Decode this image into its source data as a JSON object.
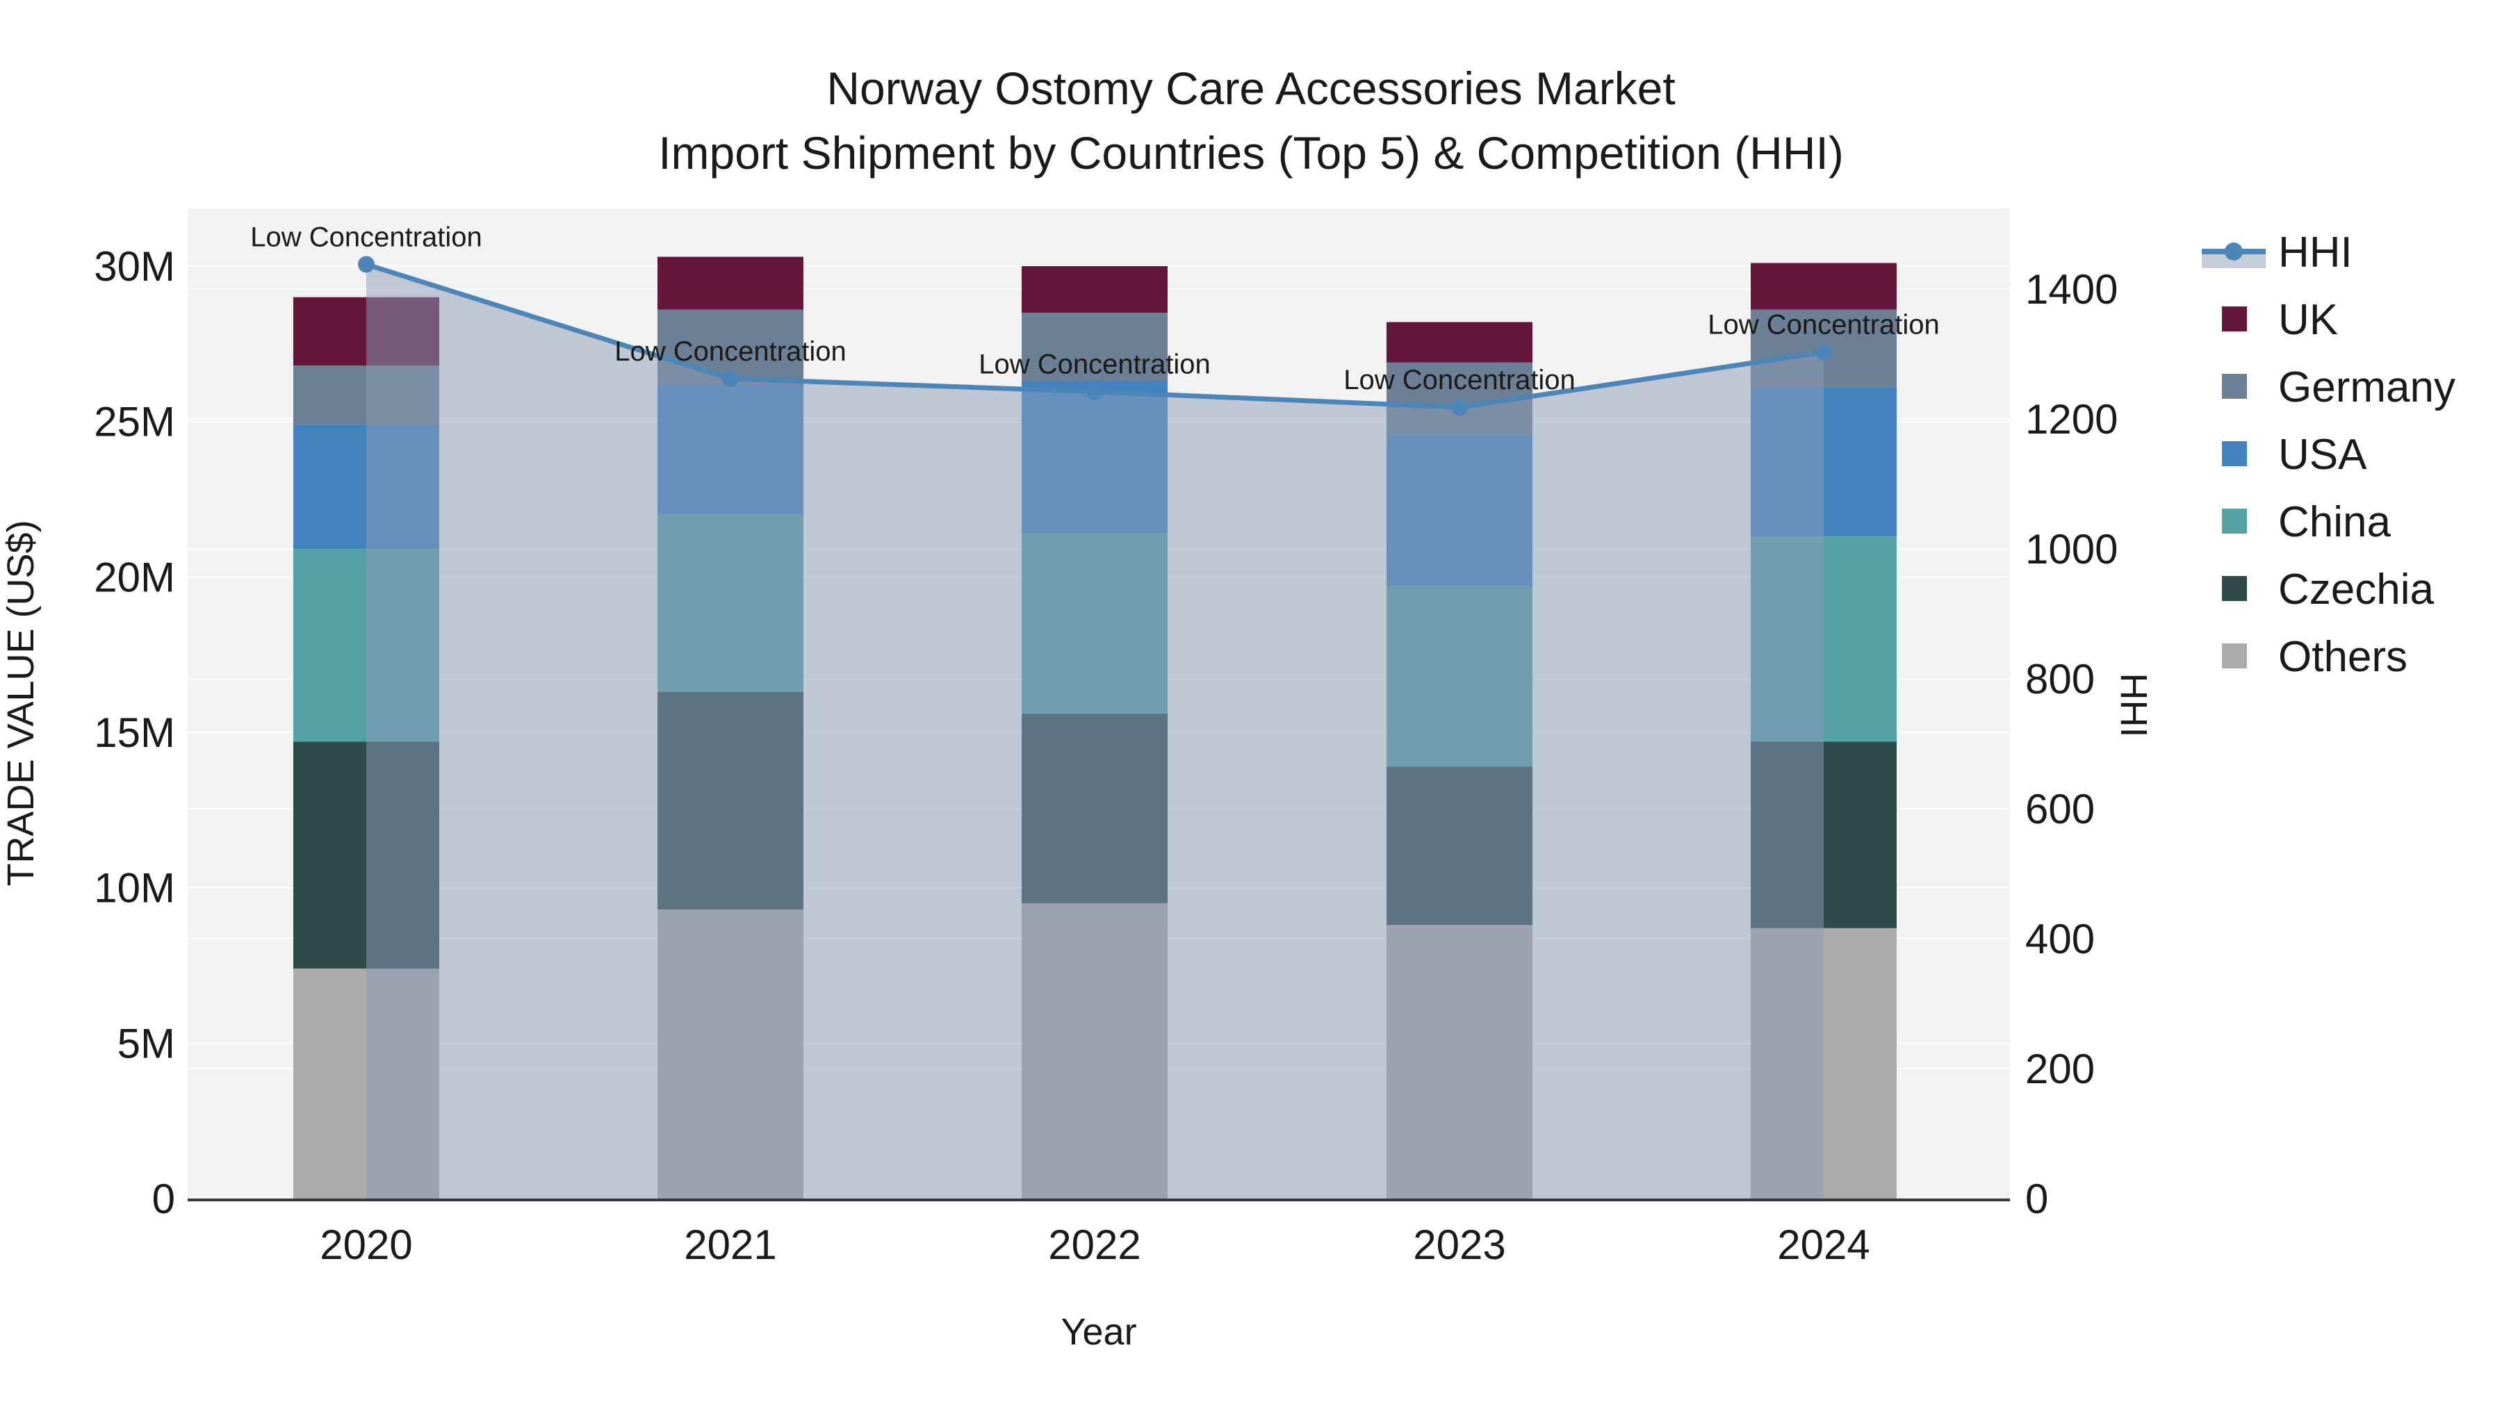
{
  "chart_data": {
    "type": "bar-line-combo",
    "title_line1": "Norway Ostomy Care Accessories Market",
    "title_line2": "Import Shipment by Countries (Top 5) & Competition (HHI)",
    "x_axis": {
      "title": "Year",
      "categories": [
        "2020",
        "2021",
        "2022",
        "2023",
        "2024"
      ]
    },
    "left_axis": {
      "title": "TRADE VALUE (US$)",
      "tick_labels": [
        "0",
        "5M",
        "10M",
        "15M",
        "20M",
        "25M",
        "30M"
      ],
      "tick_values": [
        0,
        5,
        10,
        15,
        20,
        25,
        30
      ],
      "ylim": [
        0,
        31.9
      ],
      "unit": "million US$"
    },
    "right_axis": {
      "title": "HHI",
      "tick_labels": [
        "0",
        "200",
        "400",
        "600",
        "800",
        "1000",
        "1200",
        "1400"
      ],
      "tick_values": [
        0,
        200,
        400,
        600,
        800,
        1000,
        1200,
        1400
      ],
      "ylim": [
        0,
        1524
      ]
    },
    "bar_series_stack_bottom_to_top": [
      {
        "name": "Others",
        "color": "#ABABA9",
        "values_musd": [
          7.4,
          9.3,
          9.5,
          8.8,
          8.7
        ]
      },
      {
        "name": "Czechia",
        "color": "#2C4B4A",
        "values_musd": [
          7.3,
          7.0,
          6.1,
          5.1,
          6.0
        ]
      },
      {
        "name": "China",
        "color": "#55A1A6",
        "values_musd": [
          6.2,
          5.7,
          5.8,
          5.8,
          6.6
        ]
      },
      {
        "name": "USA",
        "color": "#4382BE",
        "values_musd": [
          4.0,
          4.2,
          4.9,
          4.9,
          4.8
        ]
      },
      {
        "name": "Germany",
        "color": "#6C7F94",
        "values_musd": [
          1.9,
          2.4,
          2.2,
          2.3,
          2.5
        ]
      },
      {
        "name": "UK",
        "color": "#64173B",
        "values_musd": [
          2.2,
          1.7,
          1.5,
          1.3,
          1.5
        ]
      }
    ],
    "bar_totals_musd": [
      29.0,
      30.3,
      30.0,
      28.2,
      30.1
    ],
    "line_series": {
      "name": "HHI",
      "color": "#4C86B8",
      "fill_color": "rgba(139,155,183,0.5)",
      "values": [
        1438,
        1262,
        1242,
        1218,
        1303
      ]
    },
    "point_annotations": [
      "Low Concentration",
      "Low Concentration",
      "Low Concentration",
      "Low Concentration",
      "Low Concentration"
    ],
    "legend": {
      "position": "right",
      "items": [
        {
          "name": "HHI",
          "type": "line",
          "color": "#4C86B8"
        },
        {
          "name": "UK",
          "type": "swatch",
          "color": "#64173B"
        },
        {
          "name": "Germany",
          "type": "swatch",
          "color": "#6C7F94"
        },
        {
          "name": "USA",
          "type": "swatch",
          "color": "#4382BE"
        },
        {
          "name": "China",
          "type": "swatch",
          "color": "#55A1A6"
        },
        {
          "name": "Czechia",
          "type": "swatch",
          "color": "#2C4B4A"
        },
        {
          "name": "Others",
          "type": "swatch",
          "color": "#ABABA9"
        }
      ]
    },
    "style": {
      "plot_bg": "#F2F2F2",
      "grid_color": "#FFFFFF",
      "axis_line_color": "#33393E",
      "text_color": "#1a1a1a",
      "grid_on": true
    }
  }
}
